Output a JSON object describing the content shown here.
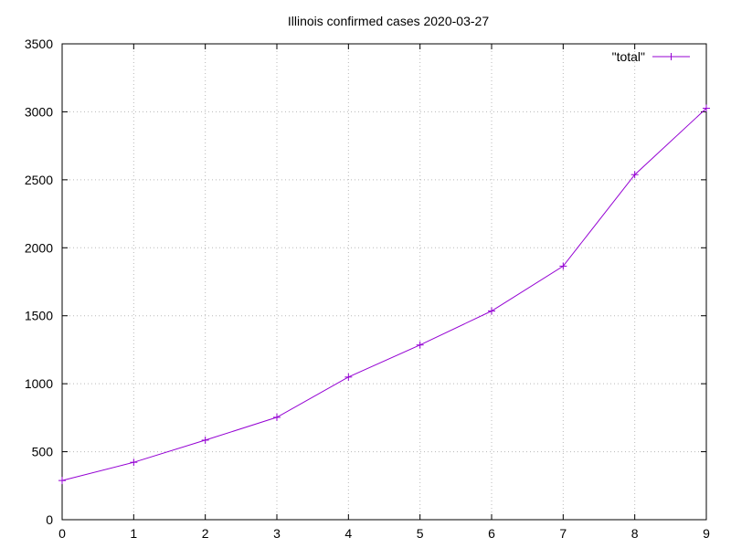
{
  "chart_data": {
    "type": "line",
    "title": "Illinois confirmed cases 2020-03-27",
    "xlabel": "",
    "ylabel": "",
    "xlim": [
      0,
      9
    ],
    "ylim": [
      0,
      3500
    ],
    "x_ticks": [
      "0",
      "1",
      "2",
      "3",
      "4",
      "5",
      "6",
      "7",
      "8",
      "9"
    ],
    "y_ticks": [
      "0",
      "500",
      "1000",
      "1500",
      "2000",
      "2500",
      "3000",
      "3500"
    ],
    "grid": true,
    "legend_position": "top-right",
    "series": [
      {
        "name": "\"total\"",
        "color": "#9400d3",
        "marker": "plus",
        "x": [
          0,
          1,
          2,
          3,
          4,
          5,
          6,
          7,
          8,
          9
        ],
        "y": [
          288,
          422,
          585,
          753,
          1049,
          1285,
          1535,
          1865,
          2538,
          3026
        ]
      }
    ]
  }
}
